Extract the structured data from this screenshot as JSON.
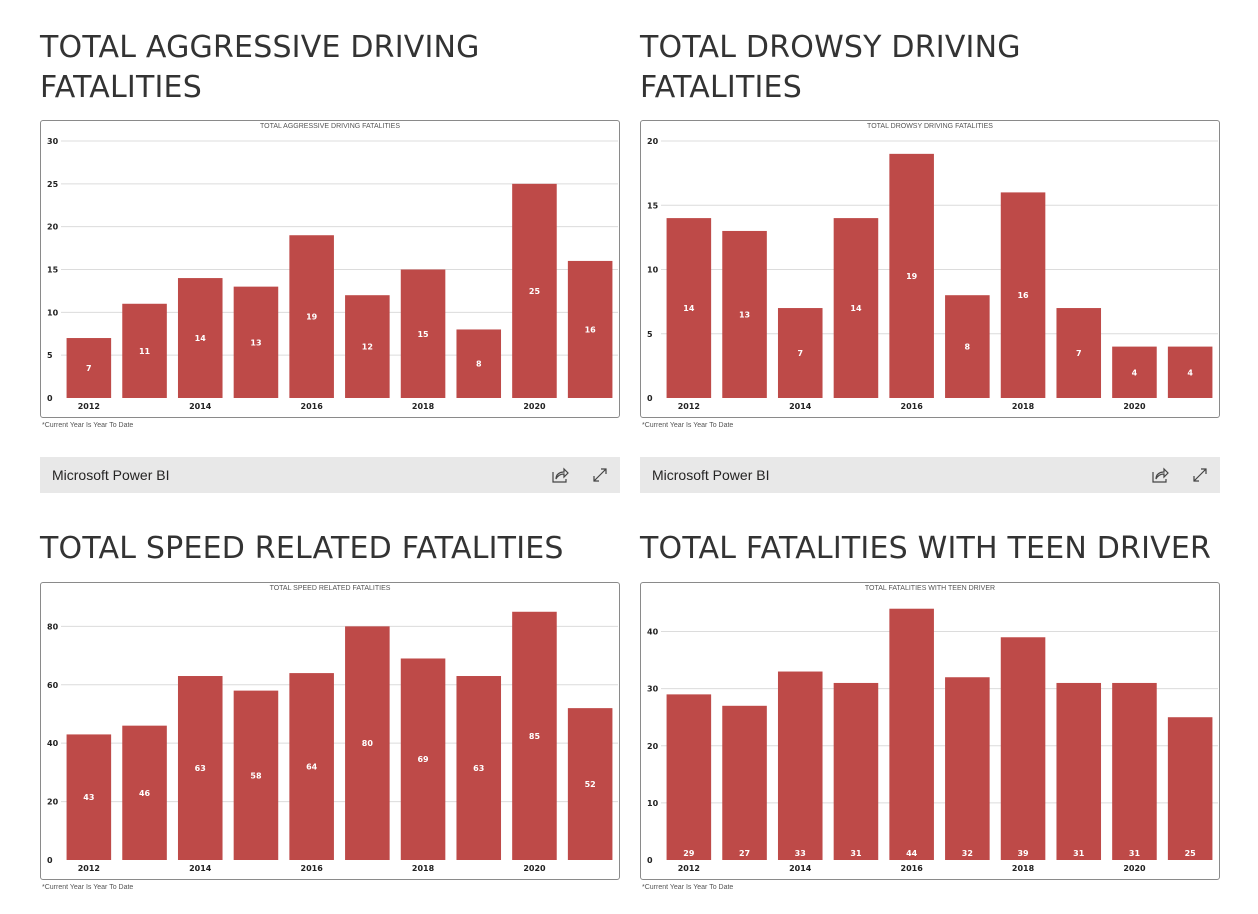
{
  "headings": [
    "TOTAL AGGRESSIVE DRIVING FATALITIES",
    "TOTAL DROWSY DRIVING FATALITIES",
    "TOTAL SPEED RELATED FATALITIES",
    "TOTAL FATALITIES WITH TEEN DRIVER"
  ],
  "footnote": "*Current Year Is Year To Date",
  "powerbi": {
    "label": "Microsoft Power BI",
    "icons": [
      "share-icon",
      "expand-icon"
    ]
  },
  "colors": {
    "bar": "#be4a48",
    "grid": "#dcdcdc"
  },
  "chart_data": [
    {
      "type": "bar",
      "title": "TOTAL AGGRESSIVE DRIVING FATALITIES",
      "categories": [
        2012,
        2013,
        2014,
        2015,
        2016,
        2017,
        2018,
        2019,
        2020,
        2021
      ],
      "x_tick_labels": [
        "2012",
        "2014",
        "2016",
        "2018",
        "2020"
      ],
      "values": [
        7,
        11,
        14,
        13,
        19,
        12,
        15,
        8,
        25,
        16
      ],
      "y_ticks": [
        0,
        5,
        10,
        15,
        20,
        25,
        30
      ],
      "ylim": [
        0,
        30
      ],
      "grid": true,
      "data_label_position": "center"
    },
    {
      "type": "bar",
      "title": "TOTAL DROWSY DRIVING FATALITIES",
      "categories": [
        2012,
        2013,
        2014,
        2015,
        2016,
        2017,
        2018,
        2019,
        2020,
        2021
      ],
      "x_tick_labels": [
        "2012",
        "2014",
        "2016",
        "2018",
        "2020"
      ],
      "values": [
        14,
        13,
        7,
        14,
        19,
        8,
        16,
        7,
        4,
        4
      ],
      "y_ticks": [
        0,
        5,
        10,
        15,
        20
      ],
      "ylim": [
        0,
        20
      ],
      "grid": true,
      "data_label_position": "center"
    },
    {
      "type": "bar",
      "title": "TOTAL SPEED RELATED FATALITIES",
      "categories": [
        2012,
        2013,
        2014,
        2015,
        2016,
        2017,
        2018,
        2019,
        2020,
        2021
      ],
      "x_tick_labels": [
        "2012",
        "2014",
        "2016",
        "2018",
        "2020"
      ],
      "values": [
        43,
        46,
        63,
        58,
        64,
        80,
        69,
        63,
        85,
        52
      ],
      "y_ticks": [
        0,
        20,
        40,
        60,
        80
      ],
      "ylim": [
        0,
        88
      ],
      "grid": true,
      "data_label_position": "center"
    },
    {
      "type": "bar",
      "title": "TOTAL FATALITIES WITH TEEN DRIVER",
      "categories": [
        2012,
        2013,
        2014,
        2015,
        2016,
        2017,
        2018,
        2019,
        2020,
        2021
      ],
      "x_tick_labels": [
        "2012",
        "2014",
        "2016",
        "2018",
        "2020"
      ],
      "values": [
        29,
        27,
        33,
        31,
        44,
        32,
        39,
        31,
        31,
        25
      ],
      "y_ticks": [
        0,
        10,
        20,
        30,
        40
      ],
      "ylim": [
        0,
        45
      ],
      "grid": true,
      "data_label_position": "inside-base"
    }
  ]
}
